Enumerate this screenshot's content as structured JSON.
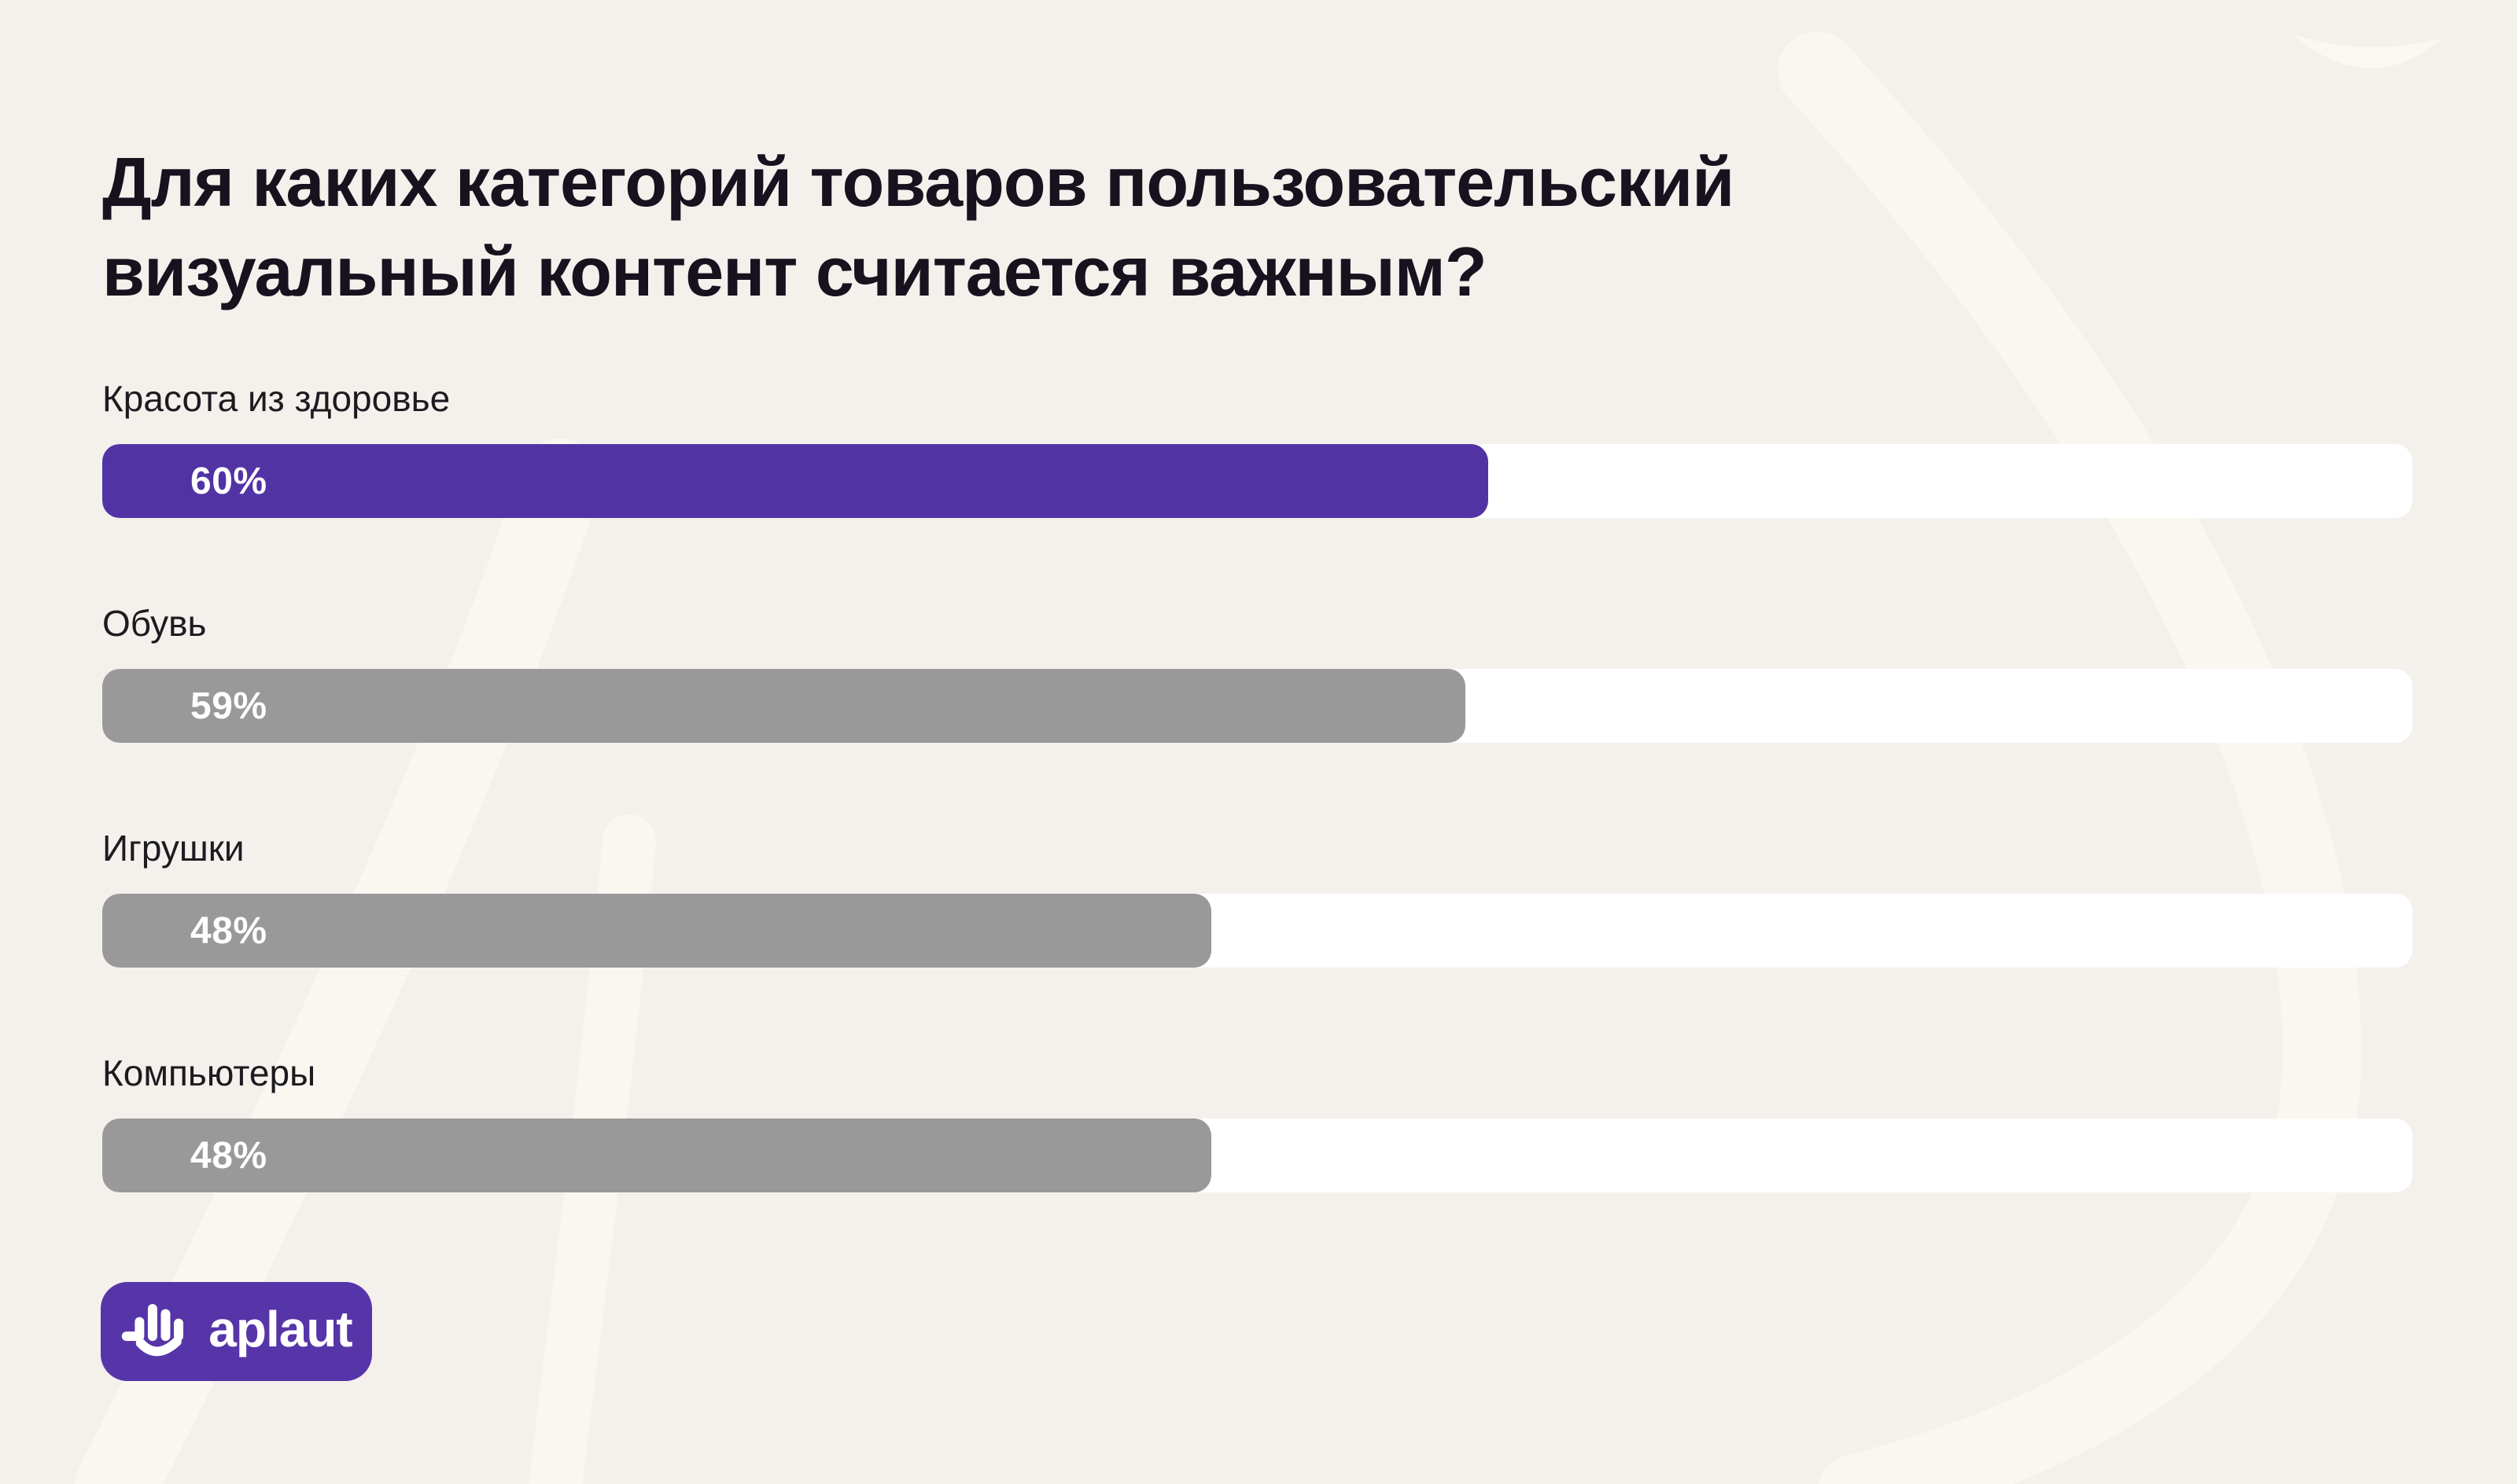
{
  "title": "Для каких категорий товаров пользовательский визуальный контент считается важным?",
  "chart_data": {
    "type": "bar",
    "orientation": "horizontal",
    "title": "Для каких категорий товаров пользовательский визуальный контент считается важным?",
    "xlim": [
      0,
      100
    ],
    "unit": "%",
    "grid": false,
    "categories": [
      "Красота из здоровье",
      "Обувь",
      "Игрушки",
      "Компьютеры"
    ],
    "values": [
      60,
      59,
      48,
      48
    ],
    "rows": [
      {
        "label": "Красота из здоровье",
        "value": 60,
        "display": "60%",
        "color": "#5233A4",
        "highlighted": true
      },
      {
        "label": "Обувь",
        "value": 59,
        "display": "59%",
        "color": "#9A9999",
        "highlighted": false
      },
      {
        "label": "Игрушки",
        "value": 48,
        "display": "48%",
        "color": "#9A9999",
        "highlighted": false
      },
      {
        "label": "Компьютеры",
        "value": 48,
        "display": "48%",
        "color": "#9A9999",
        "highlighted": false
      }
    ]
  },
  "logo": {
    "text": "aplaut",
    "icon": "aplaut-hand-icon",
    "background": "#5635A8"
  },
  "colors": {
    "background": "#F4F0EC",
    "swirl": "#FAF7F1",
    "track": "#FFFFFF",
    "accent_purple": "#5233A4",
    "bar_gray": "#9A9999",
    "title_text": "#16121E",
    "label_text": "#1B1B20",
    "value_text": "#FFFFFF"
  }
}
